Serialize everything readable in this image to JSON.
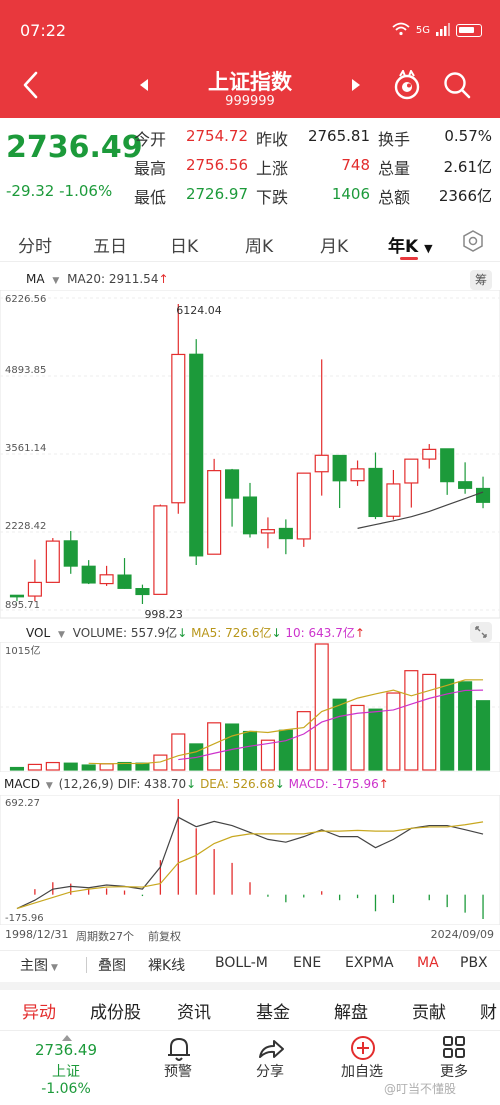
{
  "status": {
    "time": "07:22",
    "network": "5G"
  },
  "header": {
    "title": "上证指数",
    "code": "999999"
  },
  "quote": {
    "price": "2736.49",
    "change": "-29.32",
    "change_pct": "-1.06%",
    "fields": [
      {
        "label": "今开",
        "value": "2754.72",
        "color": "red"
      },
      {
        "label": "昨收",
        "value": "2765.81",
        "color": "black"
      },
      {
        "label": "换手",
        "value": "0.57%",
        "color": "black"
      },
      {
        "label": "最高",
        "value": "2756.56",
        "color": "red"
      },
      {
        "label": "上涨",
        "value": "748",
        "color": "red"
      },
      {
        "label": "总量",
        "value": "2.61亿",
        "color": "black"
      },
      {
        "label": "最低",
        "value": "2726.97",
        "color": "green"
      },
      {
        "label": "下跌",
        "value": "1406",
        "color": "green"
      },
      {
        "label": "总额",
        "value": "2366亿",
        "color": "black"
      }
    ]
  },
  "tabs": [
    "分时",
    "五日",
    "日K",
    "周K",
    "月K",
    "年K"
  ],
  "active_tab": "年K",
  "main_chart": {
    "legend_label": "MA",
    "ma20_label": "MA20: 2911.54",
    "side_button": "筹",
    "y_ticks": [
      "6226.56",
      "4893.85",
      "3561.14",
      "2228.42",
      "895.71"
    ],
    "max_label": "6124.04",
    "min_label": "998.23"
  },
  "volume_chart": {
    "label": "VOL",
    "volume_label": "VOLUME: 557.9亿",
    "ma5_label": "MA5: 726.6亿",
    "ma10_label": "10: 643.7亿",
    "y_max_label": "1015亿"
  },
  "macd_chart": {
    "label": "MACD",
    "params": "(12,26,9)",
    "dif_label": "DIF: 438.70",
    "dea_label": "DEA: 526.68",
    "macd_label": "MACD: -175.96",
    "y_max_label": "692.27",
    "y_min_label": "-175.96"
  },
  "footer_axis": {
    "start_date": "1998/12/31",
    "period_count": "周期数27个",
    "adjust": "前复权",
    "end_date": "2024/09/09"
  },
  "tools": [
    "主图",
    "叠图",
    "裸K线",
    "BOLL-M",
    "ENE",
    "EXPMA",
    "MA",
    "PBX"
  ],
  "bottom_tabs": [
    "异动",
    "成份股",
    "资讯",
    "基金",
    "解盘",
    "贡献",
    "财"
  ],
  "nav": {
    "price": "2736.49",
    "index_name": "上证",
    "change_pct": "-1.06%",
    "alert": "预警",
    "share": "分享",
    "add": "加自选",
    "more": "更多"
  },
  "watermark": "@叮当不懂股",
  "colors": {
    "up": "#e32d2d",
    "down": "#1c9a3a",
    "header": "#e8383d",
    "ma_line": "#444444",
    "ma5": "#c8a820",
    "ma10": "#cc33cc"
  },
  "chart_data": {
    "type": "candlestick",
    "years": [
      1998,
      1999,
      2000,
      2001,
      2002,
      2003,
      2004,
      2005,
      2006,
      2007,
      2008,
      2009,
      2010,
      2011,
      2012,
      2013,
      2014,
      2015,
      2016,
      2017,
      2018,
      2019,
      2020,
      2021,
      2022,
      2023,
      2024
    ],
    "ohlc": [
      [
        1147,
        1147,
        1047,
        1127
      ],
      [
        1134,
        1757,
        1047,
        1367
      ],
      [
        1368,
        2125,
        1361,
        2073
      ],
      [
        2077,
        2245,
        1514,
        1646
      ],
      [
        1643,
        1748,
        1339,
        1358
      ],
      [
        1347,
        1650,
        1307,
        1497
      ],
      [
        1492,
        1783,
        1259,
        1266
      ],
      [
        1261,
        1329,
        998,
        1161
      ],
      [
        1163,
        2698,
        1161,
        2675
      ],
      [
        2728,
        6124,
        2541,
        5262
      ],
      [
        5265,
        5523,
        1665,
        1821
      ],
      [
        1849,
        3478,
        1844,
        3277
      ],
      [
        3289,
        3306,
        2320,
        2808
      ],
      [
        2825,
        3067,
        2134,
        2199
      ],
      [
        2212,
        2478,
        1950,
        2269
      ],
      [
        2289,
        2444,
        1849,
        2116
      ],
      [
        2110,
        3239,
        1974,
        3234
      ],
      [
        3258,
        5178,
        2850,
        3539
      ],
      [
        3536,
        3538,
        2638,
        3104
      ],
      [
        3105,
        3450,
        3016,
        3307
      ],
      [
        3314,
        3587,
        2449,
        2494
      ],
      [
        2497,
        3288,
        2441,
        3050
      ],
      [
        3066,
        3474,
        2646,
        3473
      ],
      [
        3474,
        3731,
        3312,
        3640
      ],
      [
        3649,
        3651,
        2863,
        3089
      ],
      [
        3087,
        3419,
        2882,
        2975
      ],
      [
        2972,
        3174,
        2635,
        2736
      ]
    ],
    "ma20": [
      null,
      null,
      null,
      null,
      null,
      null,
      null,
      null,
      null,
      null,
      null,
      null,
      null,
      null,
      null,
      null,
      null,
      null,
      null,
      2290,
      2355,
      2420,
      2490,
      2580,
      2690,
      2800,
      2911.54
    ],
    "volume": [
      20,
      45,
      60,
      55,
      40,
      50,
      60,
      55,
      120,
      290,
      210,
      380,
      370,
      310,
      240,
      320,
      470,
      1015,
      570,
      520,
      490,
      620,
      800,
      770,
      730,
      710,
      557.9
    ],
    "vol_ma5": [
      null,
      null,
      null,
      null,
      54,
      50,
      53,
      52,
      65,
      115,
      147,
      211,
      274,
      312,
      302,
      324,
      342,
      471,
      523,
      579,
      613,
      643,
      598,
      640,
      682,
      726,
      726.6
    ],
    "vol_ma10": [
      null,
      null,
      null,
      null,
      null,
      null,
      null,
      null,
      null,
      84,
      101,
      135,
      166,
      192,
      213,
      236,
      290,
      386,
      432,
      457,
      469,
      484,
      531,
      577,
      613,
      641,
      643.7
    ],
    "macd_dif": [
      -100,
      -40,
      40,
      60,
      50,
      70,
      60,
      40,
      200,
      560,
      492,
      530,
      500,
      450,
      400,
      380,
      420,
      470,
      420,
      420,
      340,
      400,
      480,
      500,
      500,
      470,
      438.7
    ],
    "macd_dea": [
      -100,
      -60,
      -20,
      20,
      40,
      55,
      58,
      55,
      80,
      230,
      285,
      370,
      420,
      440,
      440,
      440,
      440,
      460,
      460,
      465,
      460,
      460,
      480,
      490,
      490,
      506,
      526.68
    ],
    "macd_hist": [
      0,
      40,
      90,
      80,
      40,
      45,
      30,
      -10,
      250,
      692.27,
      480,
      330,
      230,
      90,
      -15,
      -55,
      -20,
      25,
      -40,
      -25,
      -120,
      -60,
      0,
      -40,
      -90,
      -130,
      -175.96
    ],
    "price_range": [
      895.71,
      6226.56
    ],
    "volume_range": [
      0,
      1015
    ],
    "macd_range": [
      -175.96,
      692.27
    ]
  }
}
